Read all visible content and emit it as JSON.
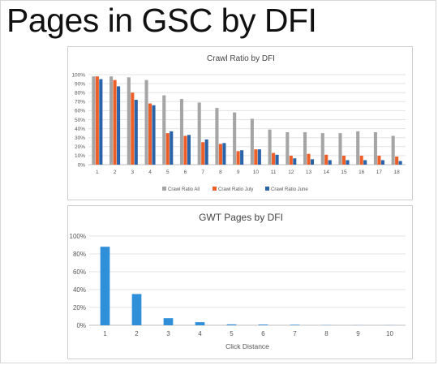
{
  "page": {
    "title": "Pages in GSC by DFI"
  },
  "chart_data": [
    {
      "type": "bar",
      "title": "Crawl Ratio by DFI",
      "xlabel": "",
      "ylabel": "",
      "ylim": [
        0,
        100
      ],
      "yticks": [
        "0%",
        "10%",
        "20%",
        "30%",
        "40%",
        "50%",
        "60%",
        "70%",
        "80%",
        "90%",
        "100%"
      ],
      "categories": [
        "1",
        "2",
        "3",
        "4",
        "5",
        "6",
        "7",
        "8",
        "9",
        "10",
        "11",
        "12",
        "13",
        "14",
        "15",
        "16",
        "17",
        "18"
      ],
      "series": [
        {
          "name": "Crawl Ratio All",
          "color": "#a5a5a5",
          "values": [
            98,
            98,
            97,
            94,
            77,
            73,
            69,
            63,
            58,
            51,
            39,
            36,
            36,
            35,
            35,
            37,
            36,
            32
          ]
        },
        {
          "name": "Crawl Ratio July",
          "color": "#ed5f29",
          "values": [
            98,
            94,
            80,
            68,
            35,
            32,
            25,
            23,
            15,
            17,
            13,
            10,
            12,
            11,
            10,
            10,
            10,
            9
          ]
        },
        {
          "name": "Crawl Ratio June",
          "color": "#2a63a8",
          "values": [
            95,
            87,
            72,
            66,
            37,
            33,
            28,
            24,
            16,
            17,
            11,
            7,
            6,
            5,
            5,
            5,
            5,
            4
          ]
        }
      ],
      "legend": "bottom",
      "grid": true
    },
    {
      "type": "bar",
      "title": "GWT Pages by DFI",
      "xlabel": "Click Distance",
      "ylabel": "",
      "ylim": [
        0,
        100
      ],
      "yticks": [
        "0%",
        "20%",
        "40%",
        "60%",
        "80%",
        "100%"
      ],
      "categories": [
        "1",
        "2",
        "3",
        "4",
        "5",
        "6",
        "7",
        "8",
        "9",
        "10"
      ],
      "series": [
        {
          "name": "",
          "color": "#2f8fd8",
          "values": [
            88,
            35,
            8,
            3.5,
            1,
            0.8,
            0.6,
            0.2,
            0.1,
            0.1
          ]
        }
      ],
      "legend": "none",
      "grid": true
    }
  ]
}
